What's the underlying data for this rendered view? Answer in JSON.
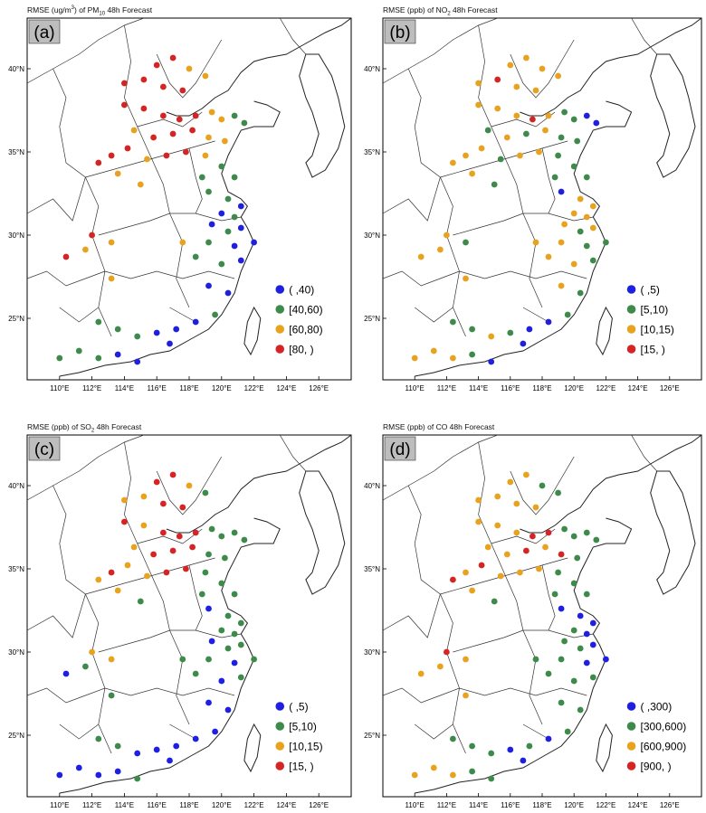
{
  "panels": [
    {
      "label": "(a)",
      "title_pre": "RMSE (ug/m",
      "title_sup": "3",
      "title_mid": ") of PM",
      "title_sub": "10",
      "title_post": " 48h Forecast",
      "legend": [
        "( ,40)",
        "[40,60)",
        "[60,80)",
        "[80, )"
      ]
    },
    {
      "label": "(b)",
      "title_pre": "RMSE (ppb) of NO",
      "title_sup": "",
      "title_mid": "",
      "title_sub": "2",
      "title_post": " 48h Forecast",
      "legend": [
        "( ,5)",
        "[5,10)",
        "[10,15)",
        "[15, )"
      ]
    },
    {
      "label": "(c)",
      "title_pre": "RMSE (ppb) of SO",
      "title_sup": "",
      "title_mid": "",
      "title_sub": "2",
      "title_post": " 48h Forecast",
      "legend": [
        "( ,5)",
        "[5,10)",
        "[10,15)",
        "[15, )"
      ]
    },
    {
      "label": "(d)",
      "title_pre": "RMSE (ppb) of CO 48h Forecast",
      "title_sup": "",
      "title_mid": "",
      "title_sub": "",
      "title_post": "",
      "legend": [
        "( ,300)",
        "[300,600)",
        "[600,900)",
        "[900, )"
      ]
    }
  ],
  "axes": {
    "lon_ticks": [
      "110°E",
      "112°E",
      "114°E",
      "116°E",
      "118°E",
      "120°E",
      "122°E",
      "124°E",
      "126°E"
    ],
    "lat_ticks": [
      "25°N",
      "30°N",
      "35°N",
      "40°N"
    ],
    "lon_range": [
      108,
      128
    ],
    "lat_range": [
      21,
      43
    ]
  },
  "colors": {
    "class1": "#1f1fe0",
    "class2": "#3d8a4a",
    "class3": "#e8a21e",
    "class4": "#d42424",
    "border": "#222222",
    "label_box": "#bdbdbd"
  }
}
